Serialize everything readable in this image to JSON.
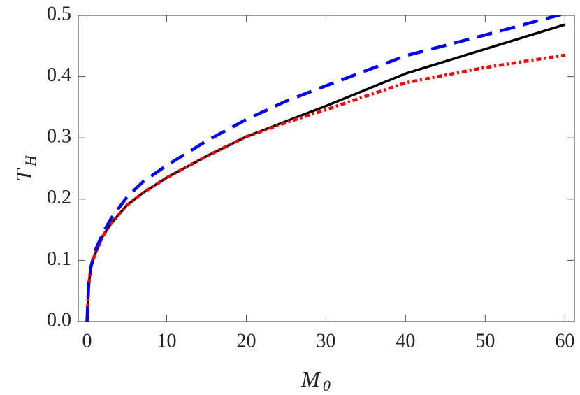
{
  "chart_data": {
    "type": "line",
    "x_label": "M",
    "x_label_sub": "0",
    "y_label": "T",
    "y_label_sub": "H",
    "x": [
      0,
      0.2,
      0.5,
      1,
      2,
      3,
      5,
      7,
      10,
      15,
      20,
      25,
      30,
      40,
      50,
      60
    ],
    "series": [
      {
        "color": "#000000",
        "style": "solid",
        "values": [
          0,
          0.06,
          0.09,
          0.11,
          0.14,
          0.16,
          0.19,
          0.21,
          0.235,
          0.27,
          0.302,
          0.327,
          0.352,
          0.405,
          0.445,
          0.485
        ]
      },
      {
        "color": "#ff0000",
        "style": "dotted",
        "values": [
          0,
          0.06,
          0.09,
          0.11,
          0.14,
          0.16,
          0.19,
          0.21,
          0.235,
          0.27,
          0.302,
          0.325,
          0.346,
          0.39,
          0.415,
          0.435
        ]
      },
      {
        "color": "#0000ff",
        "style": "dashed",
        "values": [
          0,
          0.06,
          0.09,
          0.115,
          0.145,
          0.168,
          0.203,
          0.228,
          0.255,
          0.295,
          0.33,
          0.36,
          0.385,
          0.434,
          0.468,
          0.503
        ]
      }
    ],
    "xlim": [
      -1.1,
      61.2
    ],
    "xticks": [
      0,
      10,
      20,
      30,
      40,
      50,
      60
    ],
    "ylim": [
      0,
      0.5
    ],
    "yticks": [
      {
        "value": 0,
        "label": "0.0"
      },
      0.1,
      0.2,
      0.3,
      0.4,
      0.5
    ]
  }
}
